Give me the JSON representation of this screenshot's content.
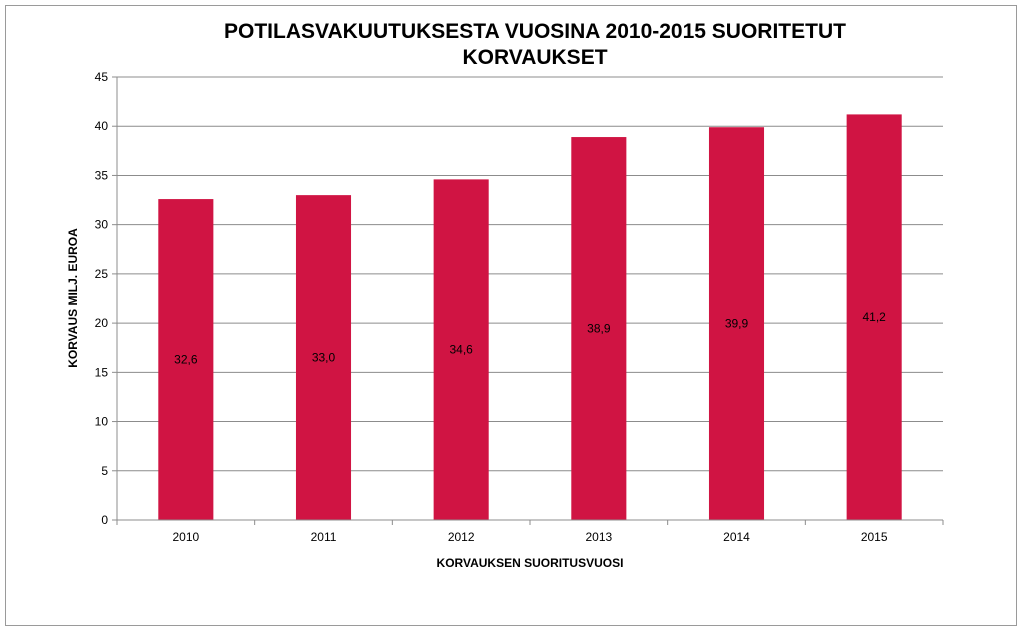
{
  "chart_data": {
    "type": "bar",
    "title_lines": [
      "POTILASVAKUUTUKSESTA VUOSINA 2010-2015 SUORITETUT",
      "KORVAUKSET"
    ],
    "xlabel": "KORVAUKSEN SUORITUSVUOSI",
    "ylabel": "KORVAUS MILJ. EUROA",
    "categories": [
      "2010",
      "2011",
      "2012",
      "2013",
      "2014",
      "2015"
    ],
    "values": [
      32.6,
      33.0,
      34.6,
      38.9,
      39.9,
      41.2
    ],
    "value_labels": [
      "32,6",
      "33,0",
      "34,6",
      "38,9",
      "39,9",
      "41,2"
    ],
    "ylim": [
      0,
      45
    ],
    "yticks": [
      0,
      5,
      10,
      15,
      20,
      25,
      30,
      35,
      40,
      45
    ],
    "grid": true,
    "legend": "none",
    "bar_color": "#d01443"
  }
}
